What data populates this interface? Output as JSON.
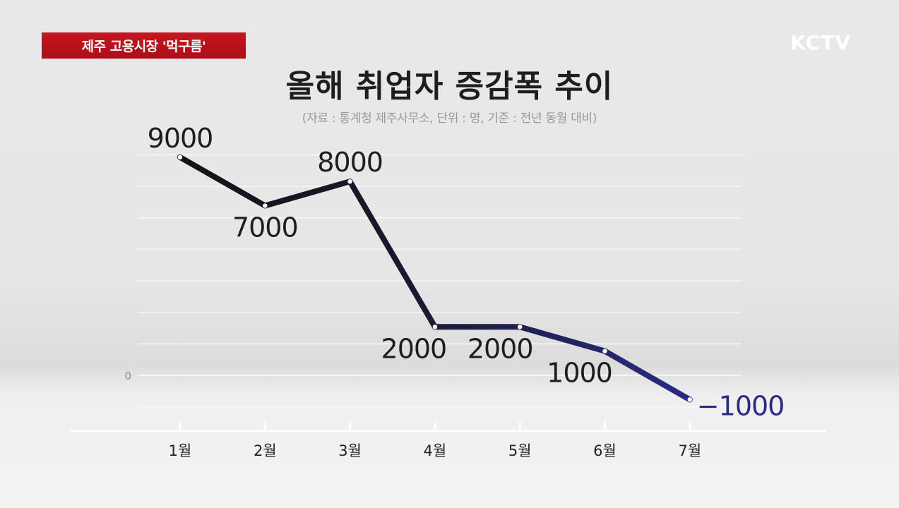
{
  "header": {
    "tag_label": "제주 고용시장 '먹구름'",
    "logo_text": "KCTV",
    "title": "올해 취업자 증감폭 추이",
    "subtitle": "(자료 : 통계청 제주사무소, 단위 : 명, 기준 : 전년 동월 대비)"
  },
  "colors": {
    "tag_bg": "#b5121b",
    "line_start": "#141418",
    "line_end": "#2a2a85",
    "negative_label": "#2a2a85",
    "grid": "#f7f7f7",
    "text": "#1e1e1e"
  },
  "chart_data": {
    "type": "line",
    "title": "올해 취업자 증감폭 추이",
    "xlabel": "",
    "ylabel": "",
    "categories": [
      "1월",
      "2월",
      "3월",
      "4월",
      "5월",
      "6월",
      "7월"
    ],
    "series": [
      {
        "name": "취업자 증감폭",
        "values": [
          9000,
          7000,
          8000,
          2000,
          2000,
          1000,
          -1000
        ],
        "labels": [
          "9000",
          "7000",
          "8000",
          "2000",
          "2000",
          "1000",
          "−1000"
        ]
      }
    ],
    "y_ticks": [
      {
        "value": 0,
        "label": "0"
      }
    ],
    "ylim": [
      -1500,
      10000
    ],
    "grid": true,
    "legend": "none"
  }
}
